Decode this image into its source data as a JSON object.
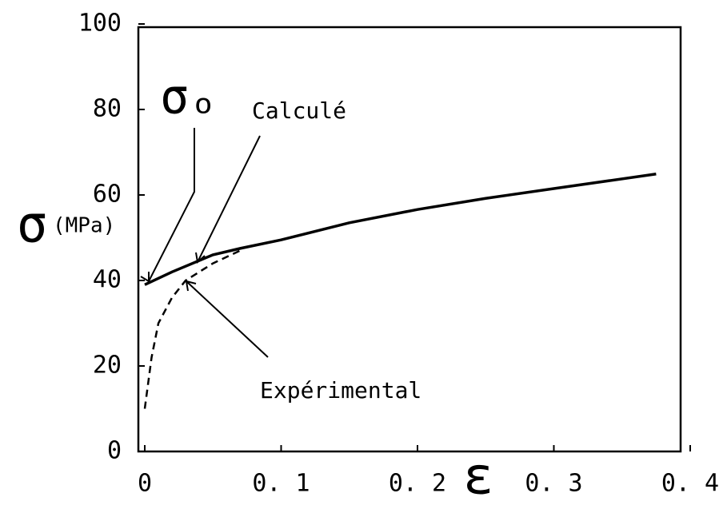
{
  "chart_data": {
    "type": "line",
    "xlabel": "ε",
    "ylabel": "σ",
    "ylabel_unit": "(MPa)",
    "annotations": [
      "σₒ"
    ],
    "series": [
      {
        "name": "Calculé",
        "color": "#000000",
        "line_style": "solid",
        "x": [
          0,
          0.02,
          0.05,
          0.07,
          0.1,
          0.15,
          0.2,
          0.25,
          0.3,
          0.375
        ],
        "values": [
          39,
          42,
          46,
          47.5,
          49.5,
          53.5,
          56.6,
          59.2,
          61.5,
          64.9
        ]
      },
      {
        "name": "Expérimental",
        "color": "#000000",
        "line_style": "dashed",
        "x": [
          0,
          0.005,
          0.01,
          0.02,
          0.03,
          0.05,
          0.07
        ],
        "values": [
          10,
          22,
          30,
          36,
          40,
          44,
          47
        ]
      }
    ],
    "xlim": [
      0,
      0.4
    ],
    "xticks": [
      0,
      {
        "value": 0.1,
        "label": "0. 1"
      },
      {
        "value": 0.2,
        "label": "0. 2"
      },
      {
        "value": 0.3,
        "label": "0. 3"
      },
      {
        "value": 0.4,
        "label": "0. 4"
      }
    ],
    "ylim": [
      0,
      100
    ],
    "yticks": [
      0,
      20,
      40,
      60,
      80,
      100
    ],
    "grid": false
  }
}
